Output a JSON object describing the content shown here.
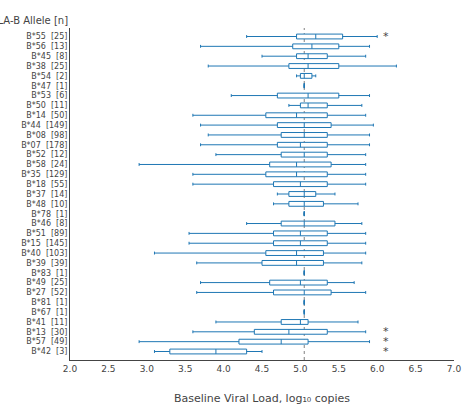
{
  "chart_data": {
    "type": "box",
    "orientation": "horizontal",
    "xlabel": "Baseline Viral Load, log₁₀ copies",
    "ylabel": "HLA-B Allele [n]",
    "categories": [
      "B*55  [25]",
      "B*56  [13]",
      "B*45  [8]",
      "B*38  [25]",
      "B*54  [2]",
      "B*47  [1]",
      "B*53  [6]",
      "B*50  [11]",
      "B*14  [50]",
      "B*44  [149]",
      "B*08  [98]",
      "B*07  [178]",
      "B*52  [12]",
      "B*58  [24]",
      "B*35  [129]",
      "B*18  [55]",
      "B*37  [14]",
      "B*48  [10]",
      "B*78  [1]",
      "B*46  [8]",
      "B*51  [89]",
      "B*15  [145]",
      "B*40  [103]",
      "B*39  [39]",
      "B*83  [1]",
      "B*49  [25]",
      "B*27  [52]",
      "B*81  [1]",
      "B*67  [1]",
      "B*41  [11]",
      "B*13  [30]",
      "B*57  [49]",
      "B*42  [3]"
    ],
    "whislo": [
      4.3,
      3.7,
      4.5,
      3.8,
      4.95,
      5.05,
      4.1,
      4.85,
      3.6,
      3.7,
      3.8,
      3.7,
      3.9,
      2.9,
      3.6,
      3.6,
      4.7,
      4.65,
      5.05,
      4.3,
      3.55,
      3.55,
      3.1,
      3.65,
      5.05,
      3.7,
      3.65,
      5.05,
      5.05,
      3.9,
      3.6,
      2.9,
      3.1
    ],
    "q1": [
      4.95,
      4.9,
      4.95,
      4.85,
      5.0,
      5.05,
      4.7,
      5.0,
      4.55,
      4.7,
      4.75,
      4.7,
      4.75,
      4.6,
      4.55,
      4.65,
      4.85,
      4.85,
      5.05,
      4.75,
      4.65,
      4.65,
      4.55,
      4.5,
      5.05,
      4.6,
      4.65,
      5.05,
      5.05,
      4.75,
      4.4,
      4.2,
      3.3
    ],
    "med": [
      5.2,
      5.15,
      5.1,
      5.1,
      5.05,
      5.05,
      5.1,
      5.1,
      4.95,
      5.05,
      5.05,
      5.0,
      5.05,
      4.95,
      4.95,
      5.0,
      5.05,
      5.05,
      5.05,
      5.05,
      5.0,
      5.0,
      4.95,
      4.95,
      5.05,
      5.0,
      5.05,
      5.05,
      5.05,
      5.0,
      4.85,
      4.75,
      3.9
    ],
    "q3": [
      5.55,
      5.5,
      5.35,
      5.5,
      5.15,
      5.05,
      5.5,
      5.35,
      5.35,
      5.4,
      5.35,
      5.35,
      5.35,
      5.4,
      5.35,
      5.35,
      5.2,
      5.3,
      5.05,
      5.45,
      5.35,
      5.35,
      5.3,
      5.3,
      5.05,
      5.35,
      5.4,
      5.05,
      5.05,
      5.1,
      5.35,
      5.1,
      4.3
    ],
    "whishi": [
      6.0,
      5.9,
      5.85,
      6.25,
      5.2,
      5.05,
      5.9,
      5.8,
      5.85,
      5.95,
      5.9,
      5.9,
      5.85,
      5.85,
      5.85,
      5.85,
      5.45,
      5.75,
      5.05,
      5.8,
      5.85,
      5.85,
      5.85,
      5.8,
      5.05,
      5.7,
      5.85,
      5.05,
      5.05,
      5.75,
      5.85,
      5.9,
      4.5
    ],
    "vline": 5.05,
    "annotations": [
      {
        "category": "B*55  [25]",
        "x": 6.05,
        "text": "*"
      },
      {
        "category": "B*13  [30]",
        "x": 6.05,
        "text": "*"
      },
      {
        "category": "B*57  [49]",
        "x": 6.05,
        "text": "*"
      },
      {
        "category": "B*42  [3]",
        "x": 6.05,
        "text": "*"
      }
    ],
    "xlim": [
      2.0,
      7.0
    ],
    "xticks": [
      {
        "value": 2.0,
        "label": "2.0"
      },
      2.5,
      {
        "value": 3.0,
        "label": "3.0"
      },
      3.5,
      {
        "value": 4.0,
        "label": "4.0"
      },
      4.5,
      {
        "value": 5.0,
        "label": "5.0"
      },
      5.5,
      {
        "value": 6.0,
        "label": "6.0"
      },
      6.5,
      {
        "value": 7.0,
        "label": "7.0"
      }
    ],
    "grid": false
  }
}
